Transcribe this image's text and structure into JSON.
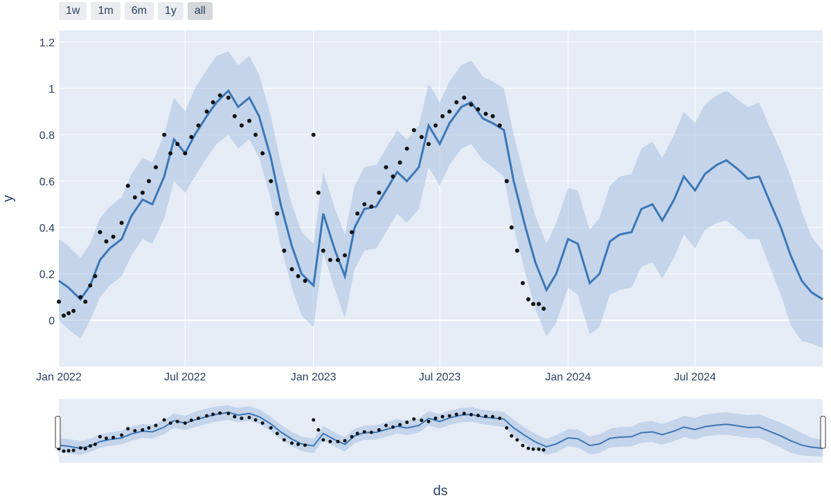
{
  "range_selector": {
    "buttons": [
      {
        "label": "1w",
        "active": false
      },
      {
        "label": "1m",
        "active": false
      },
      {
        "label": "6m",
        "active": false
      },
      {
        "label": "1y",
        "active": false
      },
      {
        "label": "all",
        "active": true
      }
    ]
  },
  "colors": {
    "plot_bg": "#e5ecf6",
    "grid": "#ffffff",
    "band": "#a9c1e0",
    "line": "#3a76b5",
    "points": "#111111",
    "text": "#2a3f5f"
  },
  "chart_data": {
    "type": "line",
    "xlabel": "ds",
    "ylabel": "y",
    "xlim": [
      "2022-01-01",
      "2024-12-31"
    ],
    "ylim": [
      -0.2,
      1.25
    ],
    "y_ticks": [
      0,
      0.2,
      0.4,
      0.6,
      0.8,
      1,
      1.2
    ],
    "y_tick_labels": [
      "0",
      "0.2",
      "0.4",
      "0.6",
      "0.8",
      "1",
      "1.2"
    ],
    "x_ticks": [
      "2022-01-01",
      "2022-07-01",
      "2023-01-01",
      "2023-07-01",
      "2024-01-01",
      "2024-07-01"
    ],
    "x_tick_labels": [
      "Jan 2022",
      "Jul 2022",
      "Jan 2023",
      "Jul 2023",
      "Jan 2024",
      "Jul 2024"
    ],
    "grid": true,
    "range_slider": true,
    "forecast": {
      "x": [
        "2022-01-01",
        "2022-01-15",
        "2022-02-01",
        "2022-02-15",
        "2022-03-01",
        "2022-03-15",
        "2022-04-01",
        "2022-04-15",
        "2022-05-01",
        "2022-05-15",
        "2022-06-01",
        "2022-06-15",
        "2022-07-01",
        "2022-07-15",
        "2022-08-01",
        "2022-08-15",
        "2022-09-01",
        "2022-09-15",
        "2022-10-01",
        "2022-10-15",
        "2022-11-01",
        "2022-11-15",
        "2022-12-01",
        "2022-12-15",
        "2023-01-01",
        "2023-01-15",
        "2023-02-01",
        "2023-02-15",
        "2023-03-01",
        "2023-03-15",
        "2023-04-01",
        "2023-04-15",
        "2023-05-01",
        "2023-05-15",
        "2023-06-01",
        "2023-06-15",
        "2023-07-01",
        "2023-07-15",
        "2023-08-01",
        "2023-08-15",
        "2023-09-01",
        "2023-09-15",
        "2023-10-01",
        "2023-10-15",
        "2023-11-01",
        "2023-11-15",
        "2023-12-01",
        "2023-12-15",
        "2024-01-01",
        "2024-01-15",
        "2024-02-01",
        "2024-02-15",
        "2024-03-01",
        "2024-03-15",
        "2024-04-01",
        "2024-04-15",
        "2024-05-01",
        "2024-05-15",
        "2024-06-01",
        "2024-06-15",
        "2024-07-01",
        "2024-07-15",
        "2024-08-01",
        "2024-08-15",
        "2024-09-01",
        "2024-09-15",
        "2024-10-01",
        "2024-10-15",
        "2024-11-01",
        "2024-11-15",
        "2024-12-01",
        "2024-12-15",
        "2024-12-31"
      ],
      "yhat": [
        0.17,
        0.14,
        0.09,
        0.15,
        0.26,
        0.31,
        0.35,
        0.45,
        0.52,
        0.5,
        0.62,
        0.78,
        0.72,
        0.8,
        0.88,
        0.94,
        0.99,
        0.92,
        0.96,
        0.88,
        0.7,
        0.5,
        0.32,
        0.2,
        0.15,
        0.46,
        0.3,
        0.19,
        0.4,
        0.48,
        0.49,
        0.56,
        0.64,
        0.6,
        0.66,
        0.84,
        0.76,
        0.85,
        0.92,
        0.94,
        0.87,
        0.85,
        0.82,
        0.6,
        0.4,
        0.25,
        0.13,
        0.2,
        0.35,
        0.33,
        0.16,
        0.2,
        0.34,
        0.37,
        0.38,
        0.48,
        0.5,
        0.43,
        0.52,
        0.62,
        0.56,
        0.63,
        0.67,
        0.69,
        0.65,
        0.61,
        0.62,
        0.52,
        0.4,
        0.28,
        0.17,
        0.12,
        0.09
      ],
      "yhat_lower": [
        0.0,
        -0.04,
        -0.08,
        0.0,
        0.1,
        0.15,
        0.19,
        0.28,
        0.35,
        0.33,
        0.44,
        0.6,
        0.55,
        0.62,
        0.7,
        0.76,
        0.8,
        0.74,
        0.78,
        0.7,
        0.52,
        0.32,
        0.14,
        0.02,
        -0.03,
        0.29,
        0.13,
        0.01,
        0.22,
        0.3,
        0.31,
        0.38,
        0.46,
        0.42,
        0.48,
        0.66,
        0.58,
        0.67,
        0.74,
        0.76,
        0.69,
        0.66,
        0.62,
        0.4,
        0.2,
        0.05,
        -0.07,
        -0.01,
        0.14,
        0.11,
        -0.06,
        -0.03,
        0.11,
        0.13,
        0.14,
        0.23,
        0.25,
        0.18,
        0.27,
        0.37,
        0.31,
        0.39,
        0.42,
        0.43,
        0.39,
        0.35,
        0.35,
        0.24,
        0.11,
        -0.02,
        -0.09,
        -0.1,
        -0.12
      ],
      "yhat_upper": [
        0.35,
        0.32,
        0.27,
        0.33,
        0.44,
        0.49,
        0.53,
        0.63,
        0.7,
        0.68,
        0.8,
        0.96,
        0.9,
        1.0,
        1.08,
        1.14,
        1.16,
        1.1,
        1.14,
        1.06,
        0.88,
        0.68,
        0.5,
        0.38,
        0.33,
        0.64,
        0.48,
        0.37,
        0.58,
        0.66,
        0.67,
        0.74,
        0.82,
        0.78,
        0.84,
        1.02,
        0.94,
        1.03,
        1.1,
        1.12,
        1.05,
        1.03,
        1.0,
        0.8,
        0.6,
        0.45,
        0.33,
        0.42,
        0.57,
        0.56,
        0.39,
        0.44,
        0.58,
        0.62,
        0.63,
        0.74,
        0.77,
        0.7,
        0.8,
        0.9,
        0.85,
        0.93,
        0.97,
        0.99,
        0.95,
        0.92,
        0.94,
        0.84,
        0.73,
        0.62,
        0.47,
        0.36,
        0.3
      ]
    },
    "observed": {
      "x": [
        "2022-01-01",
        "2022-01-08",
        "2022-01-15",
        "2022-01-22",
        "2022-02-01",
        "2022-02-08",
        "2022-02-15",
        "2022-02-22",
        "2022-03-01",
        "2022-03-10",
        "2022-03-20",
        "2022-04-01",
        "2022-04-10",
        "2022-04-20",
        "2022-05-01",
        "2022-05-10",
        "2022-05-20",
        "2022-06-01",
        "2022-06-10",
        "2022-06-20",
        "2022-07-01",
        "2022-07-10",
        "2022-07-20",
        "2022-08-01",
        "2022-08-10",
        "2022-08-20",
        "2022-09-01",
        "2022-09-10",
        "2022-09-20",
        "2022-10-01",
        "2022-10-10",
        "2022-10-20",
        "2022-11-01",
        "2022-11-10",
        "2022-11-20",
        "2022-12-01",
        "2022-12-10",
        "2022-12-20",
        "2023-01-01",
        "2023-01-08",
        "2023-01-15",
        "2023-01-25",
        "2023-02-05",
        "2023-02-15",
        "2023-02-25",
        "2023-03-05",
        "2023-03-15",
        "2023-03-25",
        "2023-04-05",
        "2023-04-15",
        "2023-04-25",
        "2023-05-05",
        "2023-05-15",
        "2023-05-25",
        "2023-06-05",
        "2023-06-15",
        "2023-06-25",
        "2023-07-05",
        "2023-07-15",
        "2023-07-25",
        "2023-08-05",
        "2023-08-15",
        "2023-08-25",
        "2023-09-05",
        "2023-09-15",
        "2023-09-25",
        "2023-10-05",
        "2023-10-12",
        "2023-10-20",
        "2023-10-28",
        "2023-11-05",
        "2023-11-12",
        "2023-11-20",
        "2023-11-27"
      ],
      "y": [
        0.08,
        0.02,
        0.03,
        0.04,
        0.1,
        0.08,
        0.15,
        0.19,
        0.38,
        0.34,
        0.36,
        0.42,
        0.58,
        0.53,
        0.55,
        0.6,
        0.66,
        0.8,
        0.72,
        0.76,
        0.72,
        0.79,
        0.84,
        0.9,
        0.94,
        0.97,
        0.96,
        0.88,
        0.84,
        0.86,
        0.8,
        0.72,
        0.6,
        0.46,
        0.3,
        0.22,
        0.19,
        0.17,
        0.8,
        0.55,
        0.3,
        0.26,
        0.26,
        0.28,
        0.38,
        0.46,
        0.5,
        0.49,
        0.55,
        0.66,
        0.62,
        0.68,
        0.74,
        0.82,
        0.79,
        0.76,
        0.84,
        0.88,
        0.9,
        0.94,
        0.96,
        0.93,
        0.91,
        0.89,
        0.88,
        0.84,
        0.6,
        0.4,
        0.3,
        0.16,
        0.09,
        0.07,
        0.07,
        0.05
      ]
    }
  }
}
